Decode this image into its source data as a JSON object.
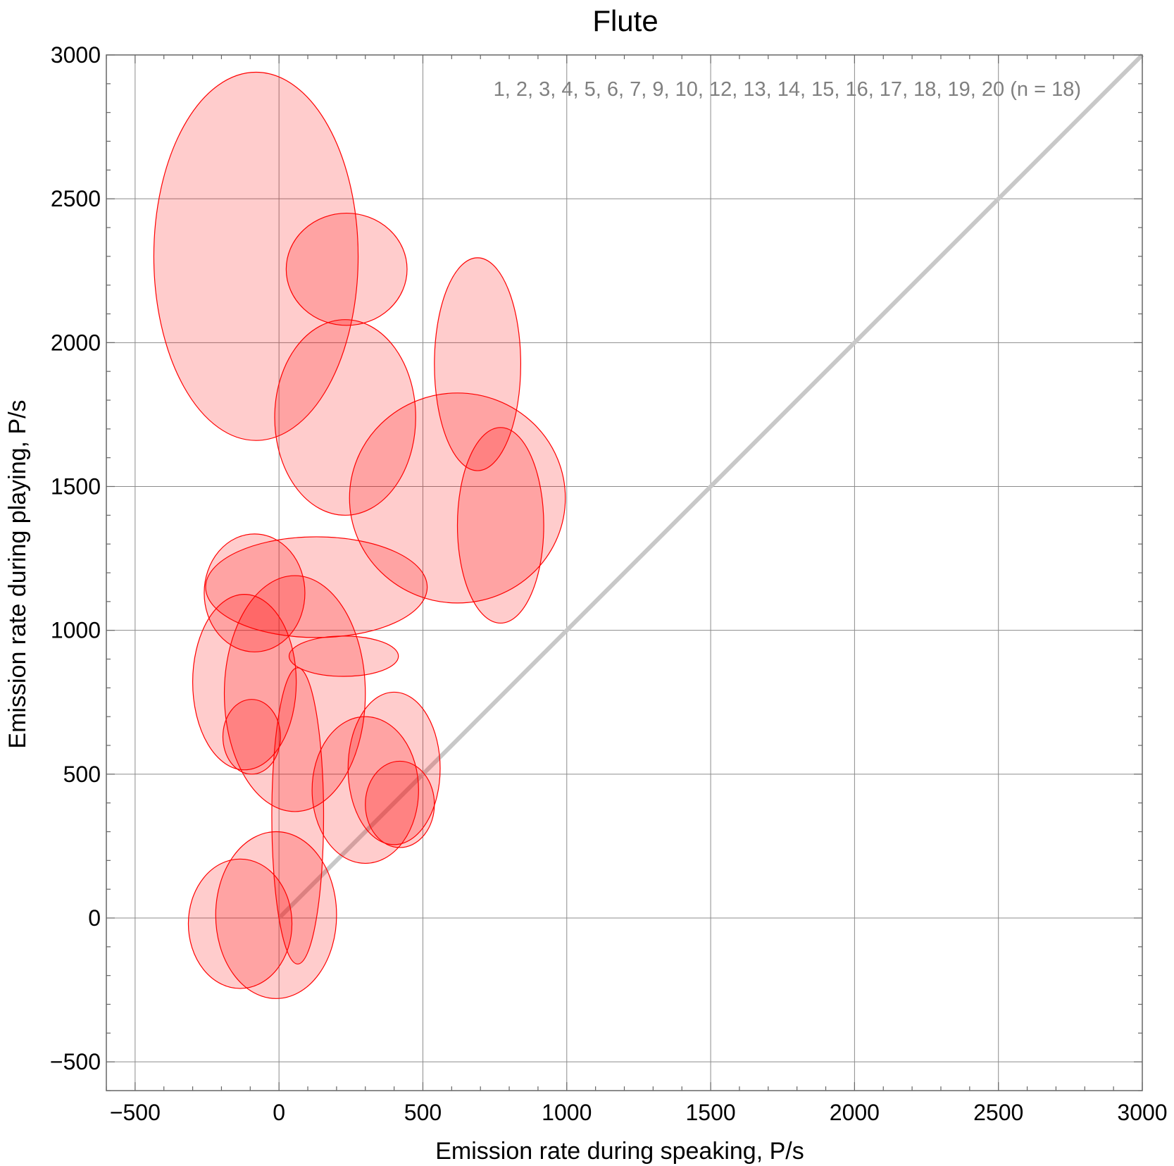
{
  "chart_data": {
    "type": "scatter",
    "title": "Flute",
    "xlabel": "Emission rate during speaking,  P/s",
    "ylabel": "Emission rate during playing,  P/s",
    "xlim": [
      -600,
      3000
    ],
    "ylim": [
      -600,
      3000
    ],
    "xticks": [
      -500,
      0,
      500,
      1000,
      1500,
      2000,
      2500,
      3000
    ],
    "yticks": [
      -500,
      0,
      500,
      1000,
      1500,
      2000,
      2500,
      3000
    ],
    "xtick_labels": [
      "−500",
      "0",
      "500",
      "1000",
      "1500",
      "2000",
      "2500",
      "3000"
    ],
    "ytick_labels": [
      "−500",
      "0",
      "500",
      "1000",
      "1500",
      "2000",
      "2500",
      "3000"
    ],
    "grid": true,
    "annotation": "1, 2, 3, 4, 5, 6, 7, 9, 10, 12, 13, 14, 15, 16, 17, 18, 19, 20  (n = 18)",
    "reference_line": {
      "from": [
        0,
        0
      ],
      "to": [
        3000,
        3000
      ],
      "color": "#c8c8c8"
    },
    "ellipse_color": "#ff0000",
    "ellipses": [
      {
        "cx": -80,
        "cy": 2300,
        "rx": 355,
        "ry": 640
      },
      {
        "cx": 235,
        "cy": 2255,
        "rx": 210,
        "ry": 195
      },
      {
        "cx": 230,
        "cy": 1740,
        "rx": 245,
        "ry": 340
      },
      {
        "cx": 690,
        "cy": 1925,
        "rx": 150,
        "ry": 370
      },
      {
        "cx": 620,
        "cy": 1460,
        "rx": 375,
        "ry": 365
      },
      {
        "cx": 770,
        "cy": 1365,
        "rx": 150,
        "ry": 340
      },
      {
        "cx": -85,
        "cy": 1130,
        "rx": 175,
        "ry": 205
      },
      {
        "cx": 130,
        "cy": 1150,
        "rx": 385,
        "ry": 175
      },
      {
        "cx": -120,
        "cy": 820,
        "rx": 180,
        "ry": 305
      },
      {
        "cx": 55,
        "cy": 780,
        "rx": 245,
        "ry": 410
      },
      {
        "cx": 225,
        "cy": 910,
        "rx": 190,
        "ry": 70
      },
      {
        "cx": -95,
        "cy": 630,
        "rx": 100,
        "ry": 130
      },
      {
        "cx": 65,
        "cy": 355,
        "rx": 90,
        "ry": 515
      },
      {
        "cx": 300,
        "cy": 445,
        "rx": 185,
        "ry": 255
      },
      {
        "cx": 400,
        "cy": 520,
        "rx": 160,
        "ry": 265
      },
      {
        "cx": 420,
        "cy": 395,
        "rx": 120,
        "ry": 150
      },
      {
        "cx": -135,
        "cy": -20,
        "rx": 180,
        "ry": 225
      },
      {
        "cx": -10,
        "cy": 10,
        "rx": 210,
        "ry": 290
      }
    ]
  }
}
